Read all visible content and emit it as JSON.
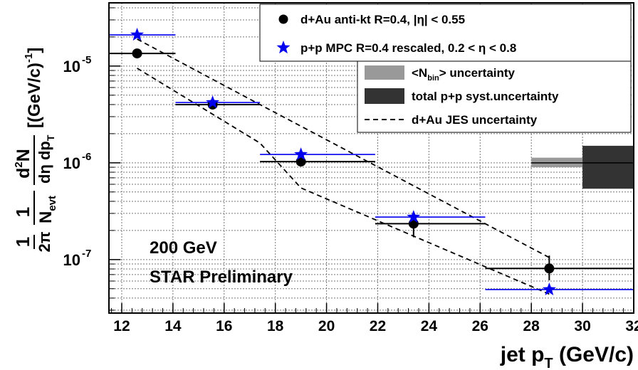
{
  "chart_data": {
    "type": "scatter",
    "x_axis": {
      "label_main": "jet p",
      "label_sub": "T",
      "label_unit": " (GeV/c)",
      "range": [
        11.5,
        32
      ],
      "ticks": [
        "12",
        "14",
        "16",
        "18",
        "20",
        "22",
        "24",
        "26",
        "28",
        "30",
        "32"
      ],
      "scale": "linear"
    },
    "y_axis": {
      "label": "1/(2π) 1/N_evt d²N/(dη dp_T) [(GeV/c)^-1]",
      "label_parts": {
        "one": "1",
        "two_pi": "2π",
        "n": "N",
        "evt": "evt",
        "d2n_d": "d",
        "d2n_2": "2",
        "d2n_n": "N",
        "deta_dp": "dη dp",
        "t": "T",
        "unit": "[(GeV/c)",
        "unit_exp": "-1",
        "unit_close": "]"
      },
      "range": [
        2.8e-08,
        4.5e-05
      ],
      "scale": "log",
      "ticks": [
        {
          "base": "10",
          "exp": "-5"
        },
        {
          "base": "10",
          "exp": "-6"
        },
        {
          "base": "10",
          "exp": "-7"
        }
      ],
      "grid": true
    },
    "series": [
      {
        "name": "d+Au anti-kt R=0.4, |η| < 0.55",
        "marker": "circle",
        "color": "#000000",
        "points": [
          {
            "x": 12.6,
            "y": 1.35e-05,
            "xlo": 11.5,
            "xhi": 14.1,
            "ylo": 1.35e-05,
            "yhi": 1.35e-05
          },
          {
            "x": 15.55,
            "y": 4e-06,
            "xlo": 14.1,
            "xhi": 17.4,
            "ylo": 4e-06,
            "yhi": 4e-06
          },
          {
            "x": 19.0,
            "y": 1.03e-06,
            "xlo": 17.4,
            "xhi": 21.9,
            "ylo": 9.8e-07,
            "yhi": 1.08e-06
          },
          {
            "x": 23.4,
            "y": 2.35e-07,
            "xlo": 21.9,
            "xhi": 26.2,
            "ylo": 1.7e-07,
            "yhi": 3e-07
          },
          {
            "x": 28.7,
            "y": 8.1e-08,
            "xlo": 26.2,
            "xhi": 32.0,
            "ylo": 6.1e-08,
            "yhi": 1.1e-07
          }
        ]
      },
      {
        "name": "p+p MPC R=0.4 rescaled, 0.2 < η < 0.8",
        "marker": "star",
        "color": "#0000ee",
        "points": [
          {
            "x": 12.6,
            "y": 2.1e-05,
            "xlo": 11.5,
            "xhi": 14.1
          },
          {
            "x": 15.55,
            "y": 4.2e-06,
            "xlo": 14.1,
            "xhi": 17.4
          },
          {
            "x": 19.0,
            "y": 1.22e-06,
            "xlo": 17.4,
            "xhi": 21.9
          },
          {
            "x": 23.4,
            "y": 2.75e-07,
            "xlo": 21.9,
            "xhi": 26.2
          },
          {
            "x": 28.7,
            "y": 4.9e-08,
            "xlo": 26.2,
            "xhi": 32.0
          }
        ]
      }
    ],
    "jes_band": {
      "name": "d+Au JES uncertainty",
      "upper": [
        {
          "x": 12.6,
          "y": 1.9e-05
        },
        {
          "x": 17.4,
          "y": 4e-06
        },
        {
          "x": 28.7,
          "y": 1.05e-07
        }
      ],
      "lower": [
        {
          "x": 12.6,
          "y": 9.5e-06
        },
        {
          "x": 17.4,
          "y": 1.6e-06
        },
        {
          "x": 19.0,
          "y": 5.5e-07
        },
        {
          "x": 28.7,
          "y": 4.4e-08
        }
      ]
    },
    "uncertainty_boxes": [
      {
        "name": "<N_bin> uncertainty",
        "color": "#999999",
        "x0": 28.0,
        "x1": 30.0,
        "y0": 9e-07,
        "y1": 1.13e-06
      },
      {
        "name": "total p+p syst.uncertainty",
        "color": "#333333",
        "x0": 30.0,
        "x1": 32.0,
        "y0": 5.4e-07,
        "y1": 1.5e-06
      }
    ],
    "reference_line": {
      "y": 1e-06,
      "x0": 28.0,
      "x1": 32.0
    },
    "legend": {
      "placement": "top-right",
      "entries": [
        {
          "label": "d+Au anti-kt R=0.4, |η| < 0.55",
          "symbol": "circle"
        },
        {
          "label": "p+p MPC R=0.4 rescaled, 0.2 < η < 0.8",
          "symbol": "star"
        },
        {
          "label_pre": "<N",
          "label_sub": "bin",
          "label_post": "> uncertainty",
          "symbol": "box-light"
        },
        {
          "label": "total p+p syst.uncertainty",
          "symbol": "box-dark"
        },
        {
          "label": "d+Au JES uncertainty",
          "symbol": "dashed-line"
        }
      ]
    },
    "annotations": [
      "200 GeV",
      "STAR Preliminary"
    ]
  },
  "colors": {
    "dau": "#000000",
    "pp": "#0000ee",
    "nbin_box": "#999999",
    "pp_syst_box": "#333333",
    "grid": "#777777"
  }
}
